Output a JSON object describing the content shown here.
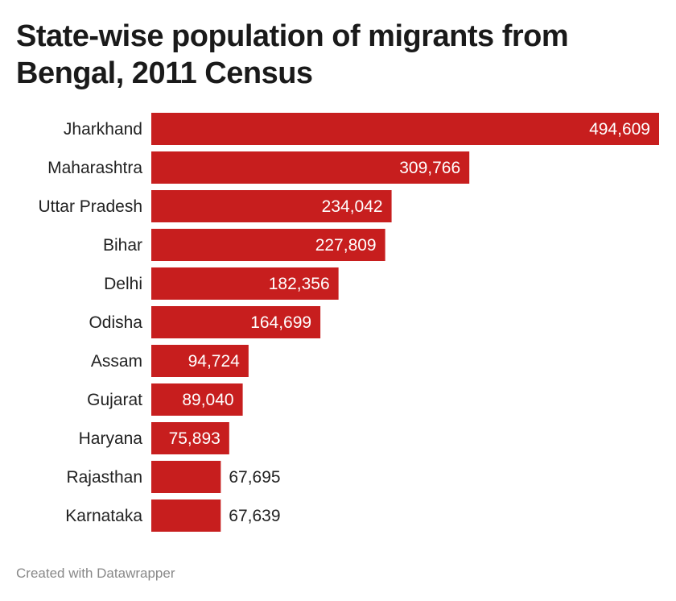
{
  "chart_data": {
    "type": "bar",
    "orientation": "horizontal",
    "title": "State-wise population of migrants from Bengal, 2011 Census",
    "categories": [
      "Jharkhand",
      "Maharashtra",
      "Uttar Pradesh",
      "Bihar",
      "Delhi",
      "Odisha",
      "Assam",
      "Gujarat",
      "Haryana",
      "Rajasthan",
      "Karnataka"
    ],
    "values": [
      494609,
      309766,
      234042,
      227809,
      182356,
      164699,
      94724,
      89040,
      75893,
      67695,
      67639
    ],
    "value_labels": [
      "494,609",
      "309,766",
      "234,042",
      "227,809",
      "182,356",
      "164,699",
      "94,724",
      "89,040",
      "75,893",
      "67,695",
      "67,639"
    ],
    "xlim": [
      0,
      494609
    ],
    "grid": false,
    "bar_color": "#c71e1e"
  },
  "footer": "Created with Datawrapper"
}
